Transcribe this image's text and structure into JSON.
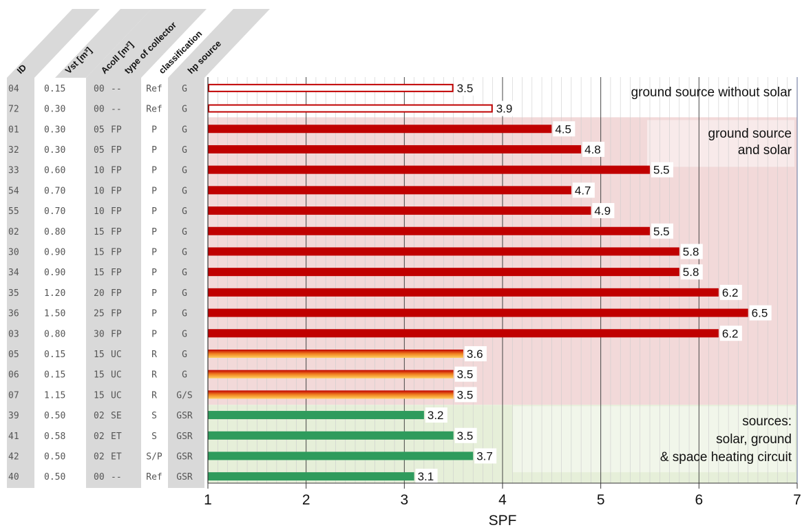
{
  "chart_data": {
    "type": "bar",
    "orientation": "horizontal",
    "xlabel": "SPF",
    "xlim": [
      1,
      7
    ],
    "xticks": [
      1,
      2,
      3,
      4,
      5,
      6,
      7
    ],
    "columns": [
      "ID",
      "Vst [m³]",
      "Acoll [m²]",
      "type of collector",
      "classification",
      "hp source"
    ],
    "rows": [
      {
        "id": "04",
        "vst": "0.15",
        "acoll": "00",
        "type": "--",
        "cls": "Ref",
        "src": "G",
        "spf": 3.5,
        "label": "3.5",
        "style": "ref"
      },
      {
        "id": "72",
        "vst": "0.30",
        "acoll": "00",
        "type": "--",
        "cls": "Ref",
        "src": "G",
        "spf": 3.9,
        "label": "3.9",
        "style": "ref"
      },
      {
        "id": "01",
        "vst": "0.30",
        "acoll": "05",
        "type": "FP",
        "cls": "P",
        "src": "G",
        "spf": 4.5,
        "label": "4.5",
        "style": "red"
      },
      {
        "id": "32",
        "vst": "0.30",
        "acoll": "05",
        "type": "FP",
        "cls": "P",
        "src": "G",
        "spf": 4.8,
        "label": "4.8",
        "style": "red"
      },
      {
        "id": "33",
        "vst": "0.60",
        "acoll": "10",
        "type": "FP",
        "cls": "P",
        "src": "G",
        "spf": 5.5,
        "label": "5.5",
        "style": "red"
      },
      {
        "id": "54",
        "vst": "0.70",
        "acoll": "10",
        "type": "FP",
        "cls": "P",
        "src": "G",
        "spf": 4.7,
        "label": "4.7",
        "style": "red"
      },
      {
        "id": "55",
        "vst": "0.70",
        "acoll": "10",
        "type": "FP",
        "cls": "P",
        "src": "G",
        "spf": 4.9,
        "label": "4.9",
        "style": "red"
      },
      {
        "id": "02",
        "vst": "0.80",
        "acoll": "15",
        "type": "FP",
        "cls": "P",
        "src": "G",
        "spf": 5.5,
        "label": "5.5",
        "style": "red"
      },
      {
        "id": "30",
        "vst": "0.90",
        "acoll": "15",
        "type": "FP",
        "cls": "P",
        "src": "G",
        "spf": 5.8,
        "label": "5.8",
        "style": "red"
      },
      {
        "id": "34",
        "vst": "0.90",
        "acoll": "15",
        "type": "FP",
        "cls": "P",
        "src": "G",
        "spf": 5.8,
        "label": "5.8",
        "style": "red"
      },
      {
        "id": "35",
        "vst": "1.20",
        "acoll": "20",
        "type": "FP",
        "cls": "P",
        "src": "G",
        "spf": 6.2,
        "label": "6.2",
        "style": "red"
      },
      {
        "id": "36",
        "vst": "1.50",
        "acoll": "25",
        "type": "FP",
        "cls": "P",
        "src": "G",
        "spf": 6.5,
        "label": "6.5",
        "style": "red"
      },
      {
        "id": "03",
        "vst": "0.80",
        "acoll": "30",
        "type": "FP",
        "cls": "P",
        "src": "G",
        "spf": 6.2,
        "label": "6.2",
        "style": "red"
      },
      {
        "id": "05",
        "vst": "0.15",
        "acoll": "15",
        "type": "UC",
        "cls": "R",
        "src": "G",
        "spf": 3.6,
        "label": "3.6",
        "style": "gradient"
      },
      {
        "id": "06",
        "vst": "0.15",
        "acoll": "15",
        "type": "UC",
        "cls": "R",
        "src": "G",
        "spf": 3.5,
        "label": "3.5",
        "style": "gradient"
      },
      {
        "id": "07",
        "vst": "1.15",
        "acoll": "15",
        "type": "UC",
        "cls": "R",
        "src": "G/S",
        "spf": 3.5,
        "label": "3.5",
        "style": "gradient"
      },
      {
        "id": "39",
        "vst": "0.50",
        "acoll": "02",
        "type": "SE",
        "cls": "S",
        "src": "GSR",
        "spf": 3.2,
        "label": "3.2",
        "style": "green"
      },
      {
        "id": "41",
        "vst": "0.58",
        "acoll": "02",
        "type": "ET",
        "cls": "S",
        "src": "GSR",
        "spf": 3.5,
        "label": "3.5",
        "style": "green"
      },
      {
        "id": "42",
        "vst": "0.50",
        "acoll": "02",
        "type": "ET",
        "cls": "S/P",
        "src": "GSR",
        "spf": 3.7,
        "label": "3.7",
        "style": "green"
      },
      {
        "id": "40",
        "vst": "0.50",
        "acoll": "00",
        "type": "--",
        "cls": "Ref",
        "src": "GSR",
        "spf": 3.1,
        "label": "3.1",
        "style": "green"
      }
    ],
    "annotations": [
      {
        "lines": [
          "ground source without solar"
        ]
      },
      {
        "lines": [
          "ground source",
          "and solar"
        ]
      },
      {
        "lines": [
          "sources:",
          "solar, ground",
          "& space heating circuit"
        ]
      }
    ],
    "colors": {
      "ref_outline": "#c00000",
      "red": "#c00000",
      "green": "#2e9b5c",
      "gradient_top": "#c00000",
      "gradient_bottom": "#ffc000",
      "pink_zone": "#f2d9d9",
      "green_zone": "#e6efd9",
      "column_band": "#d9d9d9"
    }
  }
}
